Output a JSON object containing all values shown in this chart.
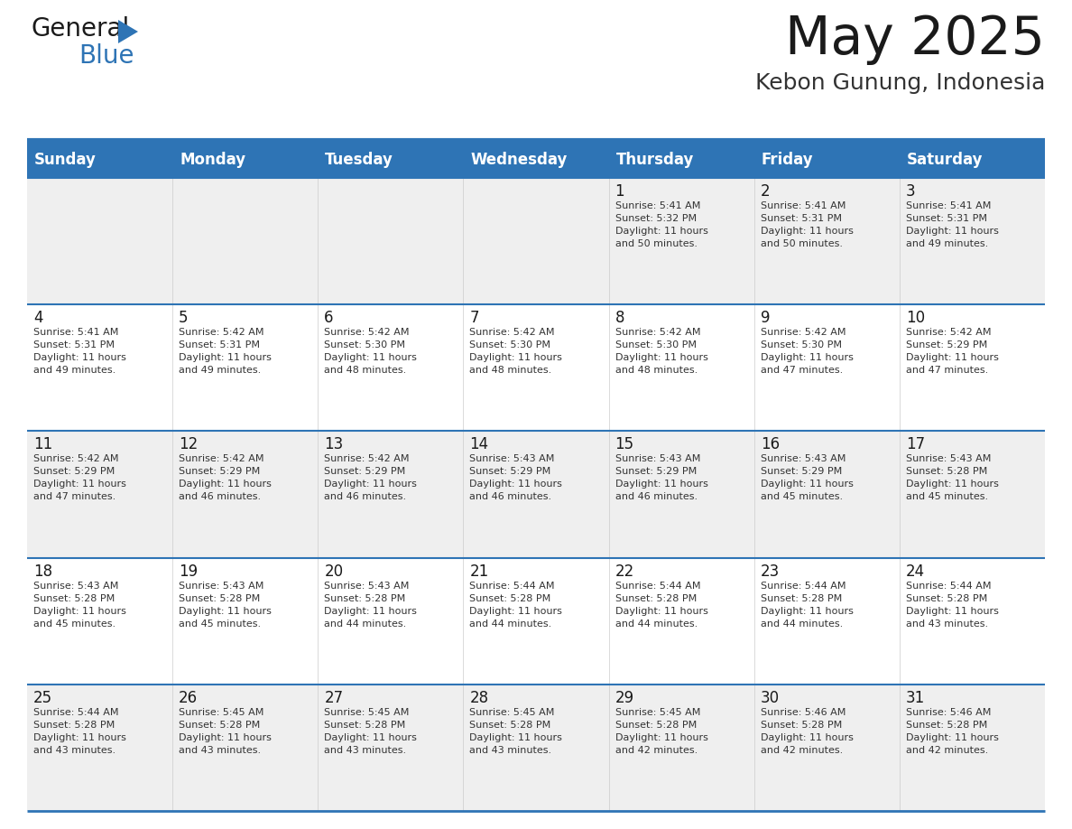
{
  "title": "May 2025",
  "subtitle": "Kebon Gunung, Indonesia",
  "days_of_week": [
    "Sunday",
    "Monday",
    "Tuesday",
    "Wednesday",
    "Thursday",
    "Friday",
    "Saturday"
  ],
  "header_bg_color": "#2E74B5",
  "header_text_color": "#FFFFFF",
  "row_bg_light": "#EFEFEF",
  "row_bg_white": "#FFFFFF",
  "background_color": "#FFFFFF",
  "title_color": "#1a1a1a",
  "subtitle_color": "#333333",
  "border_color": "#2E74B5",
  "cell_border_color": "#2E74B5",
  "text_color": "#333333",
  "calendar_data": [
    {
      "day": 1,
      "col": 4,
      "row": 0,
      "sunrise": "5:41 AM",
      "sunset": "5:32 PM",
      "daylight_hours": 11,
      "daylight_minutes": 50
    },
    {
      "day": 2,
      "col": 5,
      "row": 0,
      "sunrise": "5:41 AM",
      "sunset": "5:31 PM",
      "daylight_hours": 11,
      "daylight_minutes": 50
    },
    {
      "day": 3,
      "col": 6,
      "row": 0,
      "sunrise": "5:41 AM",
      "sunset": "5:31 PM",
      "daylight_hours": 11,
      "daylight_minutes": 49
    },
    {
      "day": 4,
      "col": 0,
      "row": 1,
      "sunrise": "5:41 AM",
      "sunset": "5:31 PM",
      "daylight_hours": 11,
      "daylight_minutes": 49
    },
    {
      "day": 5,
      "col": 1,
      "row": 1,
      "sunrise": "5:42 AM",
      "sunset": "5:31 PM",
      "daylight_hours": 11,
      "daylight_minutes": 49
    },
    {
      "day": 6,
      "col": 2,
      "row": 1,
      "sunrise": "5:42 AM",
      "sunset": "5:30 PM",
      "daylight_hours": 11,
      "daylight_minutes": 48
    },
    {
      "day": 7,
      "col": 3,
      "row": 1,
      "sunrise": "5:42 AM",
      "sunset": "5:30 PM",
      "daylight_hours": 11,
      "daylight_minutes": 48
    },
    {
      "day": 8,
      "col": 4,
      "row": 1,
      "sunrise": "5:42 AM",
      "sunset": "5:30 PM",
      "daylight_hours": 11,
      "daylight_minutes": 48
    },
    {
      "day": 9,
      "col": 5,
      "row": 1,
      "sunrise": "5:42 AM",
      "sunset": "5:30 PM",
      "daylight_hours": 11,
      "daylight_minutes": 47
    },
    {
      "day": 10,
      "col": 6,
      "row": 1,
      "sunrise": "5:42 AM",
      "sunset": "5:29 PM",
      "daylight_hours": 11,
      "daylight_minutes": 47
    },
    {
      "day": 11,
      "col": 0,
      "row": 2,
      "sunrise": "5:42 AM",
      "sunset": "5:29 PM",
      "daylight_hours": 11,
      "daylight_minutes": 47
    },
    {
      "day": 12,
      "col": 1,
      "row": 2,
      "sunrise": "5:42 AM",
      "sunset": "5:29 PM",
      "daylight_hours": 11,
      "daylight_minutes": 46
    },
    {
      "day": 13,
      "col": 2,
      "row": 2,
      "sunrise": "5:42 AM",
      "sunset": "5:29 PM",
      "daylight_hours": 11,
      "daylight_minutes": 46
    },
    {
      "day": 14,
      "col": 3,
      "row": 2,
      "sunrise": "5:43 AM",
      "sunset": "5:29 PM",
      "daylight_hours": 11,
      "daylight_minutes": 46
    },
    {
      "day": 15,
      "col": 4,
      "row": 2,
      "sunrise": "5:43 AM",
      "sunset": "5:29 PM",
      "daylight_hours": 11,
      "daylight_minutes": 46
    },
    {
      "day": 16,
      "col": 5,
      "row": 2,
      "sunrise": "5:43 AM",
      "sunset": "5:29 PM",
      "daylight_hours": 11,
      "daylight_minutes": 45
    },
    {
      "day": 17,
      "col": 6,
      "row": 2,
      "sunrise": "5:43 AM",
      "sunset": "5:28 PM",
      "daylight_hours": 11,
      "daylight_minutes": 45
    },
    {
      "day": 18,
      "col": 0,
      "row": 3,
      "sunrise": "5:43 AM",
      "sunset": "5:28 PM",
      "daylight_hours": 11,
      "daylight_minutes": 45
    },
    {
      "day": 19,
      "col": 1,
      "row": 3,
      "sunrise": "5:43 AM",
      "sunset": "5:28 PM",
      "daylight_hours": 11,
      "daylight_minutes": 45
    },
    {
      "day": 20,
      "col": 2,
      "row": 3,
      "sunrise": "5:43 AM",
      "sunset": "5:28 PM",
      "daylight_hours": 11,
      "daylight_minutes": 44
    },
    {
      "day": 21,
      "col": 3,
      "row": 3,
      "sunrise": "5:44 AM",
      "sunset": "5:28 PM",
      "daylight_hours": 11,
      "daylight_minutes": 44
    },
    {
      "day": 22,
      "col": 4,
      "row": 3,
      "sunrise": "5:44 AM",
      "sunset": "5:28 PM",
      "daylight_hours": 11,
      "daylight_minutes": 44
    },
    {
      "day": 23,
      "col": 5,
      "row": 3,
      "sunrise": "5:44 AM",
      "sunset": "5:28 PM",
      "daylight_hours": 11,
      "daylight_minutes": 44
    },
    {
      "day": 24,
      "col": 6,
      "row": 3,
      "sunrise": "5:44 AM",
      "sunset": "5:28 PM",
      "daylight_hours": 11,
      "daylight_minutes": 43
    },
    {
      "day": 25,
      "col": 0,
      "row": 4,
      "sunrise": "5:44 AM",
      "sunset": "5:28 PM",
      "daylight_hours": 11,
      "daylight_minutes": 43
    },
    {
      "day": 26,
      "col": 1,
      "row": 4,
      "sunrise": "5:45 AM",
      "sunset": "5:28 PM",
      "daylight_hours": 11,
      "daylight_minutes": 43
    },
    {
      "day": 27,
      "col": 2,
      "row": 4,
      "sunrise": "5:45 AM",
      "sunset": "5:28 PM",
      "daylight_hours": 11,
      "daylight_minutes": 43
    },
    {
      "day": 28,
      "col": 3,
      "row": 4,
      "sunrise": "5:45 AM",
      "sunset": "5:28 PM",
      "daylight_hours": 11,
      "daylight_minutes": 43
    },
    {
      "day": 29,
      "col": 4,
      "row": 4,
      "sunrise": "5:45 AM",
      "sunset": "5:28 PM",
      "daylight_hours": 11,
      "daylight_minutes": 42
    },
    {
      "day": 30,
      "col": 5,
      "row": 4,
      "sunrise": "5:46 AM",
      "sunset": "5:28 PM",
      "daylight_hours": 11,
      "daylight_minutes": 42
    },
    {
      "day": 31,
      "col": 6,
      "row": 4,
      "sunrise": "5:46 AM",
      "sunset": "5:28 PM",
      "daylight_hours": 11,
      "daylight_minutes": 42
    }
  ]
}
